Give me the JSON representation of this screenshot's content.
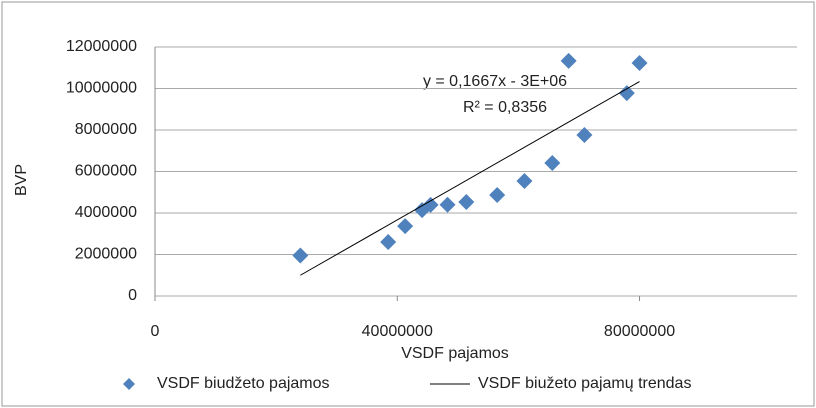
{
  "chart_data": {
    "type": "scatter",
    "x_label": "VSDF pajamos",
    "y_label": "BVP",
    "xlim": [
      0,
      106000000
    ],
    "xticks": [
      0,
      40000000,
      80000000
    ],
    "ylim": [
      0,
      12000000
    ],
    "yticks": [
      0,
      2000000,
      4000000,
      6000000,
      8000000,
      10000000,
      12000000
    ],
    "grid": true,
    "legend": "bottom",
    "series": [
      {
        "name": "VSDF biudžeto pajamos",
        "color": "#4f81bd",
        "x": [
          24000000,
          38500000,
          41300000,
          44100000,
          45500000,
          48300000,
          51400000,
          56500000,
          61000000,
          65600000,
          70900000,
          77900000,
          68300000,
          80000000
        ],
        "values": [
          1950000,
          2600000,
          3370000,
          4140000,
          4390000,
          4400000,
          4530000,
          4870000,
          5540000,
          6410000,
          7760000,
          9780000,
          11330000,
          11230000
        ]
      },
      {
        "name": "VSDF biužeto pajamų trendas",
        "color": "#000000",
        "line": true,
        "x": [
          24000000,
          80000000
        ],
        "values": [
          1000000,
          10336000
        ]
      }
    ],
    "annotations": [
      "y = 0,1667x - 3E+06",
      "R² = 0,8356"
    ]
  }
}
